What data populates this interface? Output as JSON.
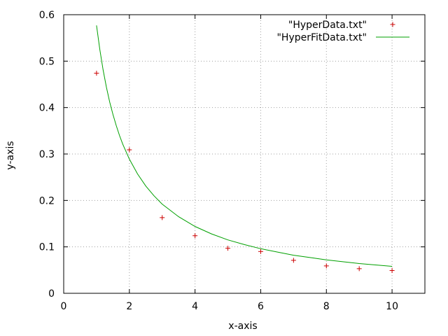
{
  "chart_data": {
    "type": "scatter",
    "xlabel": "x-axis",
    "ylabel": "y-axis",
    "xlim": [
      0,
      11
    ],
    "ylim": [
      0,
      0.6
    ],
    "x_ticks": [
      0,
      2,
      4,
      6,
      8,
      10
    ],
    "y_ticks": [
      0,
      0.1,
      0.2,
      0.3,
      0.4,
      0.5,
      0.6
    ],
    "x_tick_labels": [
      "0",
      "2",
      "4",
      "6",
      "8",
      "10"
    ],
    "y_tick_labels": [
      "0",
      "0.1",
      "0.2",
      "0.3",
      "0.4",
      "0.5",
      "0.6"
    ],
    "grid": true,
    "legend_position": "top-right",
    "series": [
      {
        "name": "\"HyperData.txt\"",
        "style": "points",
        "marker": "plus",
        "color": "#cc0000",
        "x": [
          1,
          2,
          3,
          4,
          5,
          6,
          7,
          8,
          9,
          10
        ],
        "y": [
          0.474,
          0.309,
          0.163,
          0.124,
          0.097,
          0.09,
          0.071,
          0.059,
          0.053,
          0.049
        ]
      },
      {
        "name": "\"HyperFitData.txt\"",
        "style": "line",
        "color": "#00a000",
        "x": [
          1,
          1.1,
          1.2,
          1.3,
          1.4,
          1.5,
          1.6,
          1.7,
          1.8,
          2,
          2.25,
          2.5,
          2.75,
          3,
          3.5,
          4,
          4.5,
          5,
          5.5,
          6,
          6.5,
          7,
          7.5,
          8,
          8.5,
          9,
          9.5,
          10
        ],
        "y": [
          0.577,
          0.525,
          0.481,
          0.444,
          0.412,
          0.385,
          0.361,
          0.34,
          0.321,
          0.289,
          0.257,
          0.231,
          0.21,
          0.192,
          0.165,
          0.144,
          0.128,
          0.115,
          0.105,
          0.096,
          0.089,
          0.082,
          0.077,
          0.072,
          0.068,
          0.064,
          0.061,
          0.058
        ]
      }
    ]
  }
}
